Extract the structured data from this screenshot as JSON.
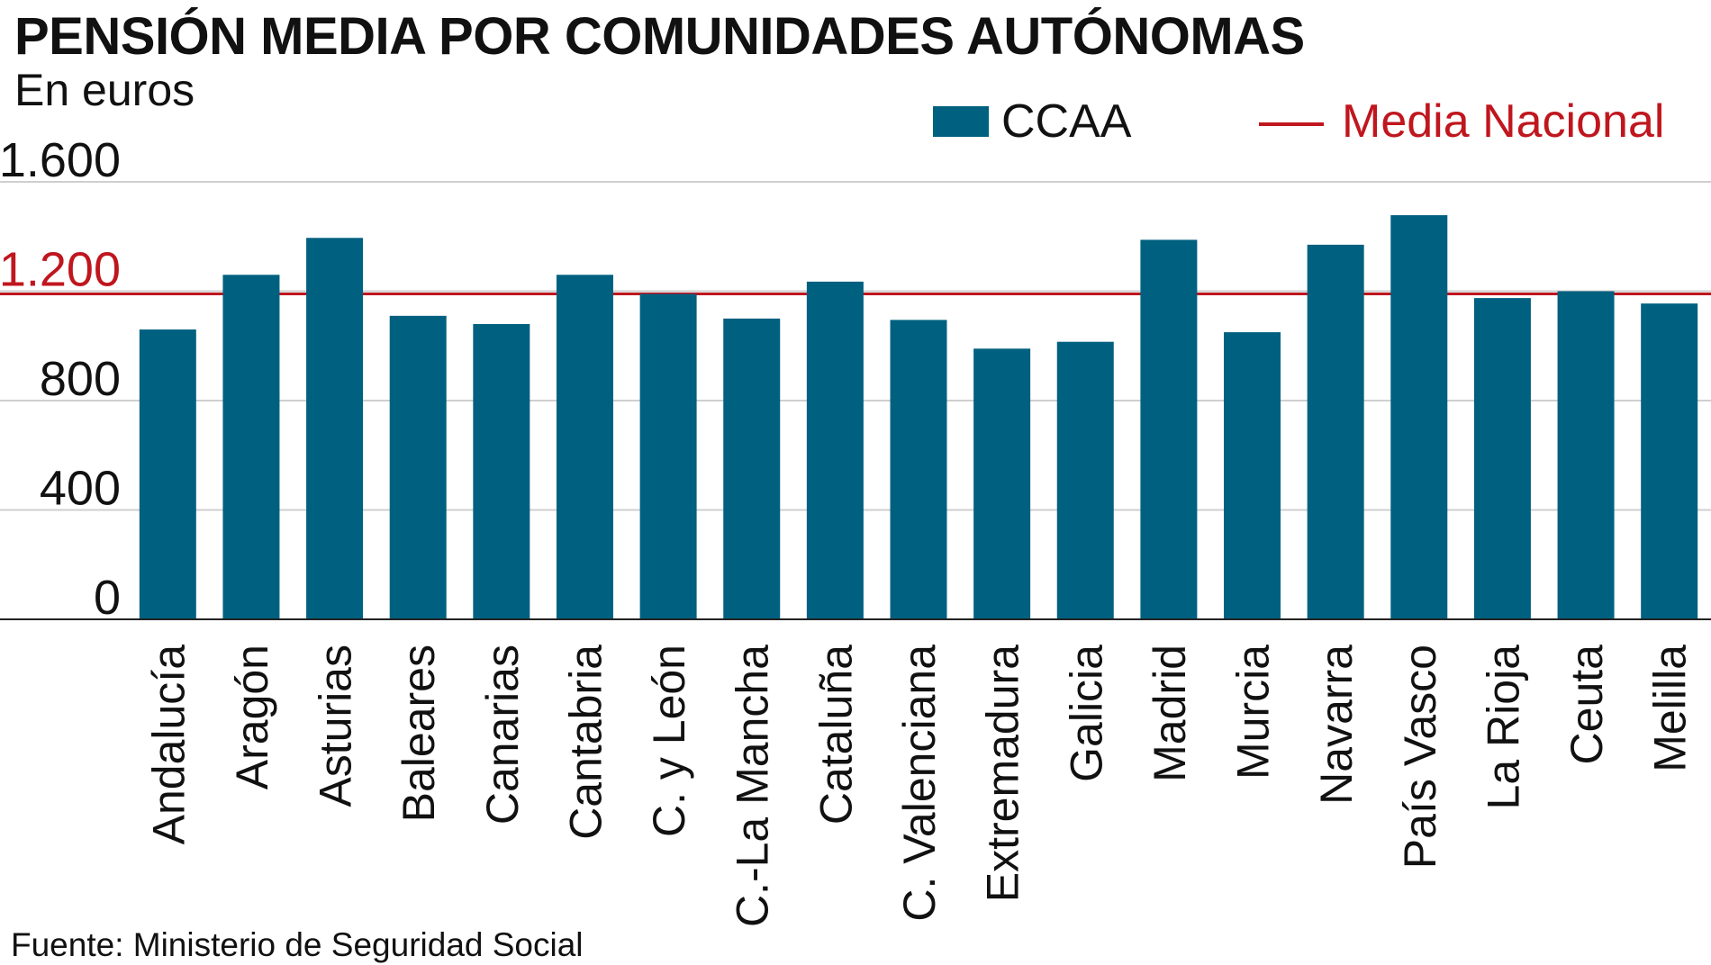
{
  "chart_data": {
    "type": "bar",
    "title": "PENSIÓN MEDIA POR COMUNIDADES AUTÓNOMAS",
    "subtitle": "En euros",
    "source": "Fuente: Ministerio de Seguridad Social",
    "categories": [
      "Andalucía",
      "Aragón",
      "Asturias",
      "Baleares",
      "Canarias",
      "Cantabria",
      "C. y León",
      "C.-La Mancha",
      "Cataluña",
      "C. Valenciana",
      "Extremadura",
      "Galicia",
      "Madrid",
      "Murcia",
      "Navarra",
      "País Vasco",
      "La Rioja",
      "Ceuta",
      "Melilla"
    ],
    "series": [
      {
        "name": "CCAA",
        "color": "#006080",
        "values": [
          1060,
          1260,
          1395,
          1110,
          1080,
          1260,
          1190,
          1100,
          1235,
          1095,
          990,
          1015,
          1388,
          1050,
          1370,
          1478,
          1175,
          1200,
          1155
        ]
      }
    ],
    "reference_line": {
      "name": "Media Nacional",
      "value": 1190,
      "color": "#c0161e"
    },
    "ylim": [
      0,
      1600
    ],
    "yticks": [
      0,
      400,
      800,
      1200,
      1600
    ],
    "ytick_labels": [
      "0",
      "400",
      "800",
      "1.200",
      "1.600"
    ],
    "highlight_tick": "1.200",
    "grid": true,
    "legend_position": "top-right"
  }
}
